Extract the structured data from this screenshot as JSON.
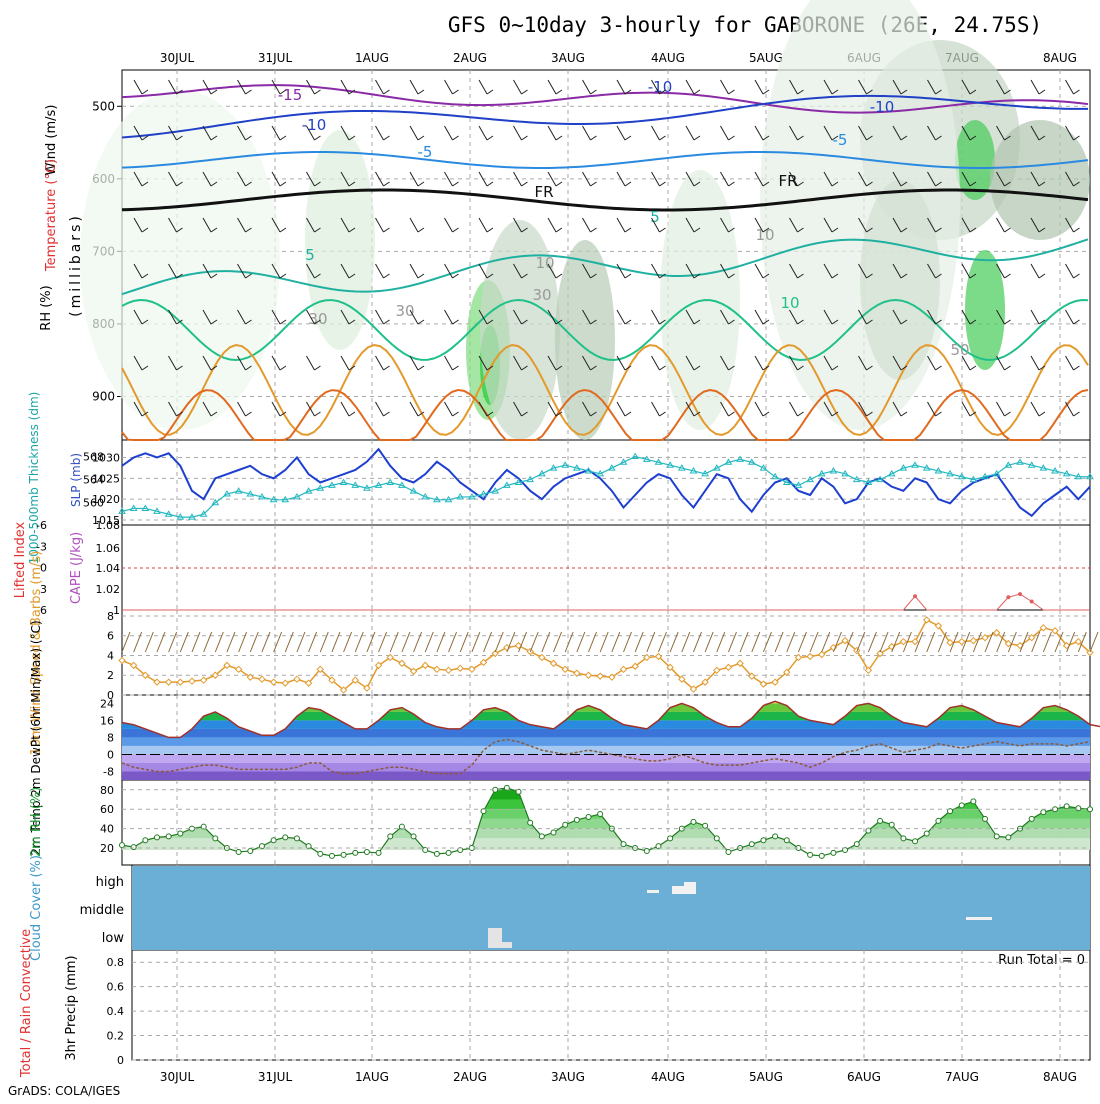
{
  "title": "GFS 0~10day 3-hourly for GABORONE (26E, 24.75S)",
  "footer": "GrADS: COLA/IGES",
  "dates": [
    "30JUL",
    "31JUL",
    "1AUG",
    "2AUG",
    "3AUG",
    "4AUG",
    "5AUG",
    "6AUG",
    "7AUG",
    "8AUG"
  ],
  "colors": {
    "grid": "#aaaaaa",
    "tempCold": "#3b78d8",
    "sea": "#6baed6",
    "green": "#21c43c",
    "orange": "#e39a2c"
  },
  "chart_data": [
    {
      "type": "line",
      "panel": "upper-air",
      "ylabel_parts": [
        "Wind (m/s)",
        "Temperature (°C)",
        "RH (%)"
      ],
      "ylabel_units": "(millibars)",
      "yticks": [
        500,
        600,
        700,
        800,
        900
      ],
      "ylim": [
        1000,
        450
      ],
      "contour_labels": [
        "-15",
        "-10",
        "-10",
        "-10",
        "-5",
        "-5",
        "FR",
        "FR",
        "5",
        "5",
        "10",
        "30",
        "30",
        "30",
        "50",
        "10",
        "10"
      ]
    },
    {
      "type": "line",
      "panel": "thickness-slp",
      "ylabel_left": "1000-500mb Thickness (dm)",
      "ylabel_right": "SLP (mb)",
      "yticks_left": [
        "568",
        "564",
        "560"
      ],
      "yticks_right": [
        "1030",
        "1025",
        "1020",
        "1015"
      ],
      "series": [
        {
          "name": "SLP (mb)",
          "values": [
            1028,
            1030,
            1031,
            1030,
            1031,
            1028,
            1022,
            1020,
            1025,
            1026,
            1027,
            1028,
            1026,
            1025,
            1027,
            1030,
            1026,
            1024,
            1025,
            1026,
            1027,
            1029,
            1032,
            1028,
            1025,
            1024,
            1026,
            1029,
            1027,
            1024,
            1022,
            1020,
            1024,
            1027,
            1025,
            1022,
            1020,
            1023,
            1025,
            1026,
            1027,
            1025,
            1022,
            1018,
            1021,
            1024,
            1026,
            1025,
            1021,
            1018,
            1022,
            1026,
            1025,
            1020,
            1017,
            1021,
            1024,
            1025,
            1022,
            1021,
            1025,
            1023,
            1019,
            1020,
            1024,
            1025,
            1023,
            1022,
            1025,
            1024,
            1020,
            1019,
            1022,
            1024,
            1025,
            1026,
            1022,
            1018,
            1016,
            1019,
            1021,
            1023,
            1020,
            1023
          ]
        },
        {
          "name": "1000-500mb Thickness (dm)",
          "values": [
            558.5,
            559,
            559,
            558.5,
            558,
            557.5,
            557.5,
            558,
            560,
            561.5,
            562,
            561.5,
            561,
            560.5,
            560.5,
            561,
            562,
            562.5,
            563,
            563.5,
            563,
            562.5,
            563,
            563.5,
            563,
            562,
            561,
            560.5,
            560.5,
            561,
            561,
            561.5,
            562,
            563,
            563.5,
            564,
            565,
            566,
            566.5,
            566,
            565.5,
            565,
            566,
            567,
            568,
            567.5,
            567,
            566.5,
            566,
            565.5,
            565,
            566,
            567,
            567.5,
            567,
            566,
            564.5,
            563.5,
            563,
            564,
            565,
            565.5,
            565,
            564,
            563.5,
            564,
            565,
            566,
            566.5,
            566,
            565.5,
            565,
            564.5,
            564,
            564.5,
            565,
            566.5,
            567,
            566.5,
            566,
            565.5,
            565,
            564.5,
            564.5
          ]
        }
      ]
    },
    {
      "type": "line",
      "panel": "lifted-index-cape",
      "ylabel_left": "Lifted Index",
      "ylabel_right": "CAPE (J/kg)",
      "yticks_left": [
        "-6",
        "-3",
        "0",
        "3",
        "6"
      ],
      "yticks_right": [
        "1.06",
        "1.04",
        "1.02",
        "1",
        "1.08"
      ],
      "series": [
        {
          "name": "CAPE (J/kg)",
          "values": [
            1,
            1,
            1,
            1,
            1,
            1,
            1,
            1,
            1,
            1,
            1,
            1,
            1,
            1,
            1,
            1,
            1,
            1,
            1,
            1,
            1,
            1,
            1,
            1,
            1,
            1,
            1,
            1,
            1,
            1,
            1,
            1,
            1,
            1,
            1,
            1,
            1,
            1,
            1,
            1,
            1,
            1,
            1,
            1,
            1,
            1,
            1,
            1,
            1,
            1,
            1,
            1,
            1,
            1,
            1,
            1,
            1,
            1,
            1,
            1,
            1,
            1,
            1,
            1,
            1,
            1,
            1,
            1,
            1.013,
            1,
            1,
            1,
            1,
            1,
            1,
            1,
            1.012,
            1.015,
            1.008,
            1,
            1,
            1,
            1,
            1
          ]
        }
      ]
    },
    {
      "type": "line",
      "panel": "wind10m",
      "ylabel": "10m Wind Speed & Barbs (m/s)",
      "yticks": [
        "8",
        "6",
        "4",
        "2",
        "0"
      ],
      "ylim": [
        0,
        8
      ],
      "series": [
        {
          "name": "10m Wind Speed",
          "values": [
            3.5,
            3,
            2,
            1.3,
            1.3,
            1.3,
            1.4,
            1.5,
            2,
            3,
            2.6,
            1.8,
            1.6,
            1.3,
            1.2,
            1.6,
            1.2,
            2.6,
            1.5,
            0.5,
            1.5,
            0.7,
            3,
            3.8,
            3.2,
            2.4,
            3,
            2.6,
            2.5,
            2.7,
            2.6,
            3.3,
            4.2,
            4.8,
            5,
            4.4,
            3.8,
            3.2,
            2.6,
            2.2,
            2,
            1.9,
            1.8,
            2.6,
            2.9,
            3.8,
            3.9,
            2.8,
            1.6,
            0.6,
            1.3,
            2.5,
            2.8,
            3.2,
            1.9,
            1.1,
            1.3,
            2.3,
            3.8,
            3.9,
            4.1,
            4.8,
            5.5,
            4.5,
            2.5,
            4.2,
            4.9,
            5.4,
            5.4,
            7.6,
            7,
            5.3,
            5.4,
            5.5,
            5.8,
            6.3,
            5.2,
            5,
            5.8,
            6.8,
            6.5,
            5,
            5.4,
            4.3
          ]
        }
      ]
    },
    {
      "type": "area",
      "panel": "temp-dewpt",
      "ylabel": "2m Temp 2m DewPt (6hr Min/Max) (°C)",
      "yticks": [
        "24",
        "16",
        "8",
        "0",
        "-8"
      ],
      "ylim": [
        -12,
        27
      ],
      "series": [
        {
          "name": "2m Temp",
          "values": [
            15,
            14,
            12,
            10,
            8,
            8,
            12,
            18,
            20,
            17,
            13,
            11,
            9,
            9,
            12,
            18,
            22,
            21,
            18,
            15,
            12,
            12,
            16,
            21,
            22,
            19,
            15,
            13,
            12,
            12,
            16,
            21,
            22,
            20,
            16,
            14,
            13,
            12,
            16,
            21,
            23,
            21,
            17,
            14,
            13,
            12,
            16,
            22,
            24,
            22,
            18,
            15,
            13,
            13,
            17,
            23,
            25,
            23,
            18,
            16,
            15,
            14,
            18,
            23,
            24,
            22,
            18,
            15,
            14,
            13,
            17,
            22,
            23,
            21,
            18,
            15,
            14,
            13,
            17,
            22,
            23,
            21,
            18,
            14,
            13,
            12
          ]
        },
        {
          "name": "2m DewPt",
          "values": [
            -4,
            -6,
            -7,
            -8,
            -8,
            -7,
            -6,
            -5,
            -5,
            -6,
            -7,
            -7,
            -7,
            -7,
            -7,
            -6,
            -4,
            -4,
            -8,
            -9,
            -9,
            -8,
            -7,
            -6,
            -6,
            -7,
            -8,
            -9,
            -9,
            -9,
            -5,
            2,
            6,
            7,
            6,
            4,
            2,
            1,
            0,
            1,
            2,
            1,
            0,
            -1,
            -2,
            -3,
            -3,
            -2,
            0,
            -2,
            -4,
            -5,
            -5,
            -5,
            -4,
            -3,
            -2,
            -3,
            -4,
            -6,
            -4,
            -1,
            1,
            2,
            4,
            5,
            3,
            1,
            2,
            3,
            5,
            4,
            3,
            4,
            5,
            6,
            5,
            4,
            5,
            5,
            5,
            4,
            5,
            6
          ]
        }
      ]
    },
    {
      "type": "area",
      "panel": "rh2m",
      "ylabel": "2m RH (%)",
      "yticks": [
        "80",
        "60",
        "40",
        "20"
      ],
      "ylim": [
        10,
        90
      ],
      "series": [
        {
          "name": "2m RH",
          "values": [
            23,
            21,
            28,
            31,
            32,
            35,
            40,
            42,
            30,
            20,
            16,
            17,
            22,
            28,
            31,
            30,
            22,
            14,
            12,
            13,
            15,
            16,
            15,
            32,
            42,
            32,
            18,
            14,
            15,
            18,
            20,
            58,
            80,
            82,
            78,
            46,
            32,
            36,
            44,
            49,
            52,
            55,
            40,
            24,
            20,
            17,
            22,
            30,
            40,
            47,
            43,
            30,
            16,
            20,
            24,
            28,
            32,
            28,
            20,
            13,
            12,
            15,
            18,
            24,
            38,
            48,
            44,
            30,
            27,
            35,
            48,
            58,
            64,
            68,
            50,
            32,
            31,
            40,
            50,
            57,
            60,
            63,
            61,
            60
          ]
        }
      ]
    },
    {
      "type": "bar",
      "panel": "cloud",
      "ylabel": "Cloud Cover (%)",
      "yticks": [
        "high",
        "middle",
        "low"
      ]
    },
    {
      "type": "bar",
      "panel": "precip",
      "ylabel_left": "Total / Rain Convective",
      "ylabel_right": "3hr Precip (mm)",
      "yticks": [
        "0.8",
        "0.6",
        "0.4",
        "0.2",
        "0"
      ],
      "ylim": [
        0,
        0.9
      ],
      "annotation": "Run Total = 0",
      "series": [
        {
          "name": "3hr Precip",
          "values": []
        }
      ]
    }
  ]
}
